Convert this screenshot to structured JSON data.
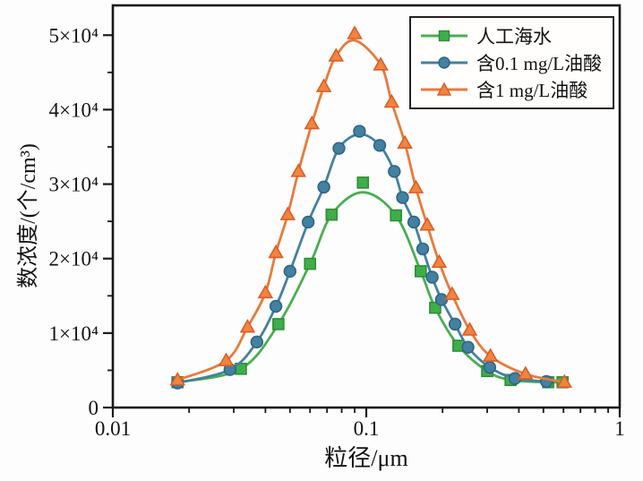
{
  "chart_data": {
    "type": "line",
    "title": "",
    "xlabel": "粒径/μm",
    "ylabel": "数浓度/(个/cm³)",
    "x_scale": "log",
    "xlim": [
      0.01,
      1
    ],
    "ylim": [
      0,
      54000
    ],
    "grid": false,
    "legend_position": "top-right",
    "x_major_ticks": {
      "values": [
        0.01,
        0.1,
        1
      ],
      "labels": [
        "0.01",
        "0.1",
        "1"
      ]
    },
    "x_minor_ticks": [
      0.02,
      0.03,
      0.04,
      0.05,
      0.06,
      0.07,
      0.08,
      0.09,
      0.2,
      0.3,
      0.4,
      0.5,
      0.6,
      0.7,
      0.8,
      0.9
    ],
    "y_major_ticks": {
      "values": [
        0,
        10000,
        20000,
        30000,
        40000,
        50000
      ],
      "labels": [
        "0",
        "1×10⁴",
        "2×10⁴",
        "3×10⁴",
        "4×10⁴",
        "5×10⁴"
      ]
    },
    "y_minor_ticks": [
      5000,
      15000,
      25000,
      35000,
      45000
    ],
    "series": [
      {
        "name": "人工海水",
        "marker": "square",
        "line_color": "#4aad52",
        "marker_fill": "#3fae49",
        "marker_stroke": "#2f8d38",
        "x": [
          0.018,
          0.032,
          0.045,
          0.06,
          0.073,
          0.097,
          0.131,
          0.164,
          0.187,
          0.231,
          0.3,
          0.371,
          0.522,
          0.595
        ],
        "y": [
          3400,
          5200,
          11200,
          19300,
          25900,
          30200,
          25800,
          18300,
          13400,
          8300,
          4900,
          3700,
          3400,
          3400
        ],
        "curve_y": [
          3400,
          5200,
          11200,
          19300,
          25900,
          28900,
          25800,
          18300,
          13400,
          8300,
          4900,
          3700,
          3400,
          3400
        ]
      },
      {
        "name": "含0.1 mg/L油酸",
        "marker": "circle",
        "line_color": "#45809f",
        "marker_fill": "#44809f",
        "marker_stroke": "#2e6584",
        "x": [
          0.018,
          0.029,
          0.037,
          0.044,
          0.05,
          0.059,
          0.068,
          0.078,
          0.094,
          0.113,
          0.129,
          0.139,
          0.154,
          0.167,
          0.182,
          0.198,
          0.224,
          0.252,
          0.307,
          0.386,
          0.514
        ],
        "y": [
          3300,
          5100,
          8800,
          13600,
          18300,
          24900,
          29600,
          34800,
          37100,
          35200,
          31700,
          28200,
          24900,
          21300,
          17500,
          14500,
          11200,
          8100,
          5400,
          3900,
          3500
        ],
        "curve_y": [
          3300,
          5100,
          8800,
          13600,
          18300,
          24900,
          29600,
          34800,
          36700,
          35200,
          31700,
          28200,
          24900,
          21300,
          17500,
          14500,
          11200,
          8100,
          5400,
          3900,
          3500
        ]
      },
      {
        "name": "含1 mg/L油酸",
        "marker": "triangle",
        "line_color": "#e87a3c",
        "marker_fill": "#f08440",
        "marker_stroke": "#d95f28",
        "x": [
          0.018,
          0.028,
          0.034,
          0.04,
          0.044,
          0.049,
          0.054,
          0.061,
          0.068,
          0.076,
          0.09,
          0.114,
          0.126,
          0.142,
          0.157,
          0.174,
          0.194,
          0.218,
          0.256,
          0.309,
          0.425,
          0.605
        ],
        "y": [
          3700,
          6300,
          10800,
          15400,
          20800,
          25900,
          31700,
          38100,
          43100,
          47200,
          50200,
          46000,
          41000,
          35500,
          29500,
          24500,
          19500,
          15200,
          10400,
          6900,
          4500,
          3400
        ],
        "curve_y": [
          3700,
          6300,
          10800,
          15400,
          20800,
          25900,
          31700,
          38100,
          43100,
          47200,
          49300,
          46000,
          41000,
          35500,
          29500,
          24500,
          19500,
          15200,
          10400,
          6900,
          4500,
          3400
        ]
      }
    ],
    "axis_color": "#1a1a1a"
  }
}
